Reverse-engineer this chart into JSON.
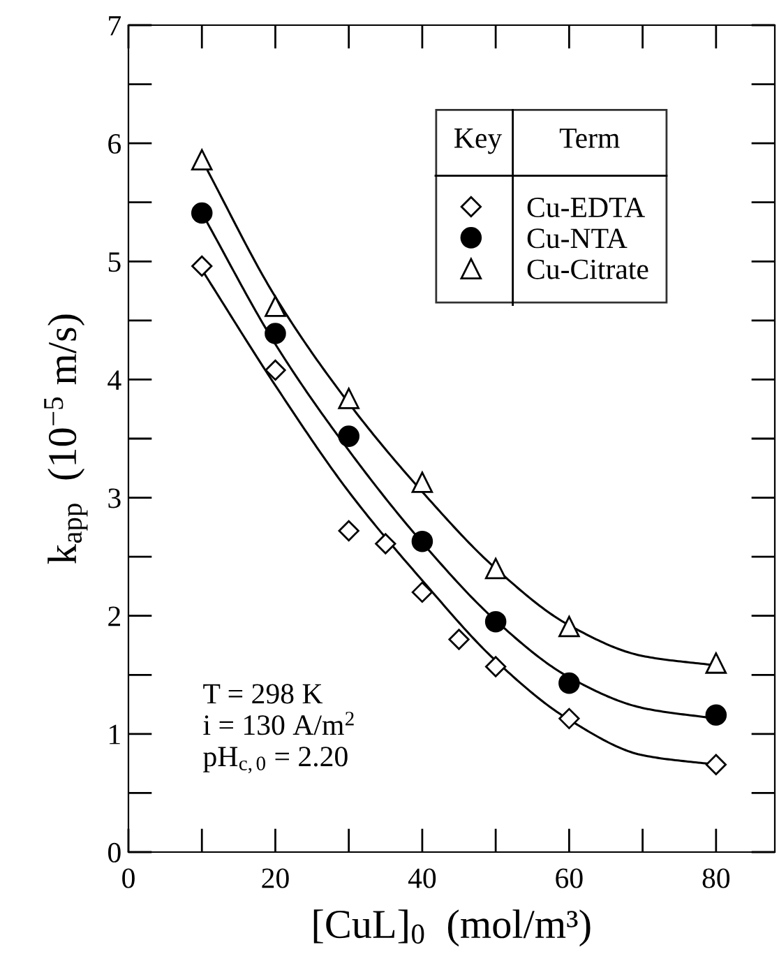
{
  "chart_data": {
    "type": "scatter",
    "xlabel": "[CuL]$_{0}$  (mol/m³)",
    "ylabel": "k$_{app}$  (10$^{−5}$ m/s)",
    "legend_title": "Key",
    "xlim": [
      0,
      88
    ],
    "ylim": [
      0,
      7
    ],
    "xticks": [
      0,
      20,
      40,
      60,
      80
    ],
    "yticks": [
      0,
      1,
      2,
      3,
      4,
      5,
      6,
      7
    ],
    "grid": false,
    "legend": "top right",
    "series": [
      {
        "name": "Cu-EDTA",
        "marker": "diamond",
        "color": "#000000",
        "x": [
          10,
          20,
          30,
          35,
          40,
          45,
          50,
          60,
          80
        ],
        "values": [
          4.96,
          4.08,
          2.72,
          2.61,
          2.2,
          1.8,
          1.57,
          1.13,
          0.74
        ]
      },
      {
        "name": "Cu-NTA",
        "marker": "circle",
        "color": "#000000",
        "x": [
          10,
          20,
          30,
          40,
          50,
          60,
          80
        ],
        "values": [
          5.41,
          4.39,
          3.52,
          2.63,
          1.95,
          1.43,
          1.16
        ]
      },
      {
        "name": "Cu-Citrate",
        "marker": "triangle",
        "color": "#000000",
        "x": [
          10,
          20,
          30,
          40,
          50,
          60,
          80
        ],
        "values": [
          5.86,
          4.62,
          3.84,
          3.13,
          2.4,
          1.91,
          1.6
        ]
      },
      {
        "type": "line",
        "color": "#000000",
        "x": [
          10,
          20,
          30,
          40,
          50,
          60,
          70,
          80
        ],
        "values": [
          4.93,
          3.95,
          3.05,
          2.3,
          1.62,
          1.12,
          0.82,
          0.74
        ]
      },
      {
        "type": "line",
        "color": "#000000",
        "x": [
          10,
          20,
          30,
          40,
          50,
          60,
          70,
          80
        ],
        "values": [
          5.41,
          4.3,
          3.4,
          2.62,
          1.96,
          1.48,
          1.22,
          1.13
        ]
      },
      {
        "type": "line",
        "color": "#000000",
        "x": [
          10,
          20,
          30,
          40,
          50,
          60,
          70,
          80
        ],
        "values": [
          5.86,
          4.7,
          3.8,
          3.05,
          2.4,
          1.92,
          1.66,
          1.58
        ]
      }
    ],
    "annotations": [
      "Term",
      "T = 298 K\ni = 130 A/m$^{2}$\npH$_{c,0}$ = 2.20"
    ]
  }
}
